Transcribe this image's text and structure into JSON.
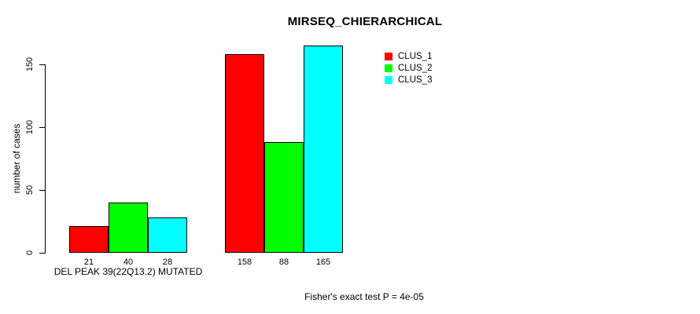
{
  "chart_data": {
    "type": "bar",
    "title": "MIRSEQ_CHIERARCHICAL",
    "ylabel": "number of cases",
    "xlabel": "DEL PEAK 39(22Q13.2) MUTATED",
    "yticks": [
      0,
      50,
      100,
      150
    ],
    "ylim": [
      0,
      170
    ],
    "grid": false,
    "legend_position": "top-right",
    "series": [
      {
        "name": "CLUS_1",
        "color": "#ff0000"
      },
      {
        "name": "CLUS_2",
        "color": "#00ff00"
      },
      {
        "name": "CLUS_3",
        "color": "#00ffff"
      }
    ],
    "groups": [
      {
        "label": "DEL PEAK 39(22Q13.2) MUTATED",
        "values": [
          21,
          40,
          28
        ]
      },
      {
        "label": "",
        "values": [
          158,
          88,
          165
        ]
      }
    ],
    "bar_value_labels": [
      21,
      40,
      28,
      158,
      88,
      165
    ],
    "annotation": "Fisher's exact test P = 4e-05"
  }
}
